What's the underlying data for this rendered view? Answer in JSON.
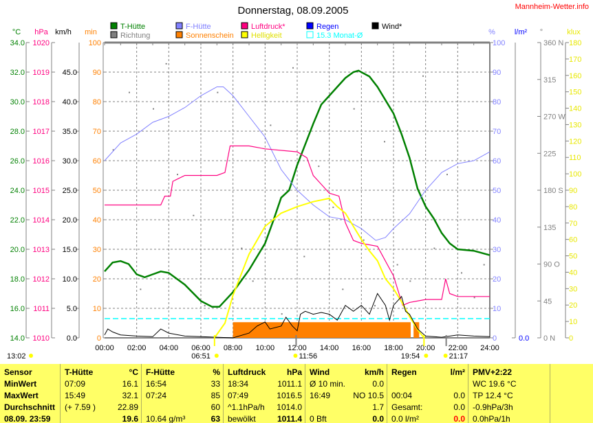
{
  "title": "Donnerstag, 08.09.2005",
  "brand": "Mannheim-Wetter.info",
  "colors": {
    "temp": "#008000",
    "pressure": "#ff0080",
    "humidity": "#8080ff",
    "rain": "#0000ff",
    "wind": "#000000",
    "direction": "#808080",
    "sunshine": "#ff8000",
    "brightness": "#ffff00",
    "monthly": "#00ffff"
  },
  "legend": [
    {
      "label": "T-Hütte",
      "color": "#008000"
    },
    {
      "label": "F-Hütte",
      "color": "#8080ff"
    },
    {
      "label": "Luftdruck*",
      "color": "#ff0080"
    },
    {
      "label": "Regen",
      "color": "#0000ff"
    },
    {
      "label": "Wind*",
      "color": "#000000"
    },
    {
      "label": "Richtung",
      "color": "#808080"
    },
    {
      "label": "Sonnenschein",
      "color": "#ff8000"
    },
    {
      "label": "Helligkeit",
      "color": "#ffff00"
    },
    {
      "label": "15.3 Monat-Ø",
      "color": "#00ffff"
    }
  ],
  "axes": {
    "temp": {
      "unit": "°C",
      "ticks": [
        "14.0",
        "16.0",
        "18.0",
        "20.0",
        "22.0",
        "24.0",
        "26.0",
        "28.0",
        "30.0",
        "32.0",
        "34.0"
      ],
      "range": [
        14,
        34
      ]
    },
    "pressure": {
      "unit": "hPa",
      "ticks": [
        "1010",
        "1011",
        "1012",
        "1013",
        "1014",
        "1015",
        "1016",
        "1017",
        "1018",
        "1019",
        "1020"
      ],
      "range": [
        1010,
        1020
      ]
    },
    "wind": {
      "unit": "km/h",
      "ticks": [
        "0.0",
        "5.0",
        "10.0",
        "15.0",
        "20.0",
        "25.0",
        "30.0",
        "35.0",
        "40.0",
        "45.0"
      ],
      "range": [
        0,
        50
      ]
    },
    "sunshine": {
      "unit": "min",
      "ticks": [
        "0",
        "10",
        "20",
        "30",
        "40",
        "50",
        "60",
        "70",
        "80",
        "90",
        "100"
      ],
      "range": [
        0,
        100
      ]
    },
    "humidity": {
      "unit": "%",
      "ticks": [
        "0",
        "10",
        "20",
        "30",
        "40",
        "50",
        "60",
        "70",
        "80",
        "90",
        "100"
      ],
      "range": [
        0,
        100
      ]
    },
    "rain": {
      "unit": "l/m²",
      "ticks": [
        "0.0"
      ]
    },
    "direction": {
      "unit": "°",
      "ticks": [
        "0   N",
        "45",
        "90  O",
        "135",
        "180 S",
        "225",
        "270 W",
        "315",
        "360 N"
      ],
      "range": [
        0,
        360
      ]
    },
    "brightness": {
      "unit": "klux",
      "ticks": [
        "0",
        "10",
        "20",
        "30",
        "40",
        "50",
        "60",
        "70",
        "80",
        "90",
        "100",
        "110",
        "120",
        "130",
        "140",
        "150",
        "160",
        "170",
        "180"
      ],
      "range": [
        0,
        180
      ]
    },
    "x": {
      "ticks": [
        "00:00",
        "02:00",
        "04:00",
        "06:00",
        "08:00",
        "10:00",
        "12:00",
        "14:00",
        "16:00",
        "18:00",
        "20:00",
        "22:00",
        "24:00"
      ],
      "range": [
        0,
        24
      ]
    }
  },
  "chart_data": {
    "type": "line",
    "title": "Donnerstag, 08.09.2005",
    "x_unit": "hour of day",
    "grid": true,
    "legend_placement": "top",
    "series": [
      {
        "name": "T-Hütte",
        "axis": "temp",
        "points": [
          [
            0,
            18.5
          ],
          [
            0.5,
            19.1
          ],
          [
            1,
            19.2
          ],
          [
            1.5,
            19
          ],
          [
            2,
            18.3
          ],
          [
            2.5,
            18.1
          ],
          [
            3,
            18.3
          ],
          [
            3.5,
            18.5
          ],
          [
            4,
            18.4
          ],
          [
            5,
            17.6
          ],
          [
            6,
            16.5
          ],
          [
            6.7,
            16.1
          ],
          [
            7.15,
            16.1
          ],
          [
            8,
            17.1
          ],
          [
            9,
            18.6
          ],
          [
            10,
            20.4
          ],
          [
            10.5,
            21.9
          ],
          [
            11,
            23.5
          ],
          [
            11.5,
            24
          ],
          [
            12,
            25.7
          ],
          [
            12.5,
            27.1
          ],
          [
            13,
            28.5
          ],
          [
            13.5,
            29.8
          ],
          [
            14,
            30.4
          ],
          [
            14.5,
            31
          ],
          [
            15,
            31.6
          ],
          [
            15.5,
            32
          ],
          [
            15.82,
            32.1
          ],
          [
            16.5,
            31.7
          ],
          [
            17,
            31
          ],
          [
            17.5,
            30.1
          ],
          [
            18,
            29.2
          ],
          [
            18.5,
            27.8
          ],
          [
            19,
            26.2
          ],
          [
            19.5,
            24.1
          ],
          [
            20,
            22.9
          ],
          [
            20.5,
            22.1
          ],
          [
            21,
            21.1
          ],
          [
            21.5,
            20.4
          ],
          [
            22,
            20
          ],
          [
            23,
            19.9
          ],
          [
            24,
            19.6
          ]
        ]
      },
      {
        "name": "F-Hütte",
        "axis": "humidity",
        "points": [
          [
            0,
            60
          ],
          [
            1,
            66
          ],
          [
            2,
            69
          ],
          [
            3,
            73
          ],
          [
            4,
            75
          ],
          [
            5,
            78
          ],
          [
            6,
            82
          ],
          [
            7,
            85
          ],
          [
            7.4,
            85
          ],
          [
            8,
            82
          ],
          [
            9,
            75
          ],
          [
            10,
            68
          ],
          [
            11,
            57
          ],
          [
            12,
            50
          ],
          [
            13,
            45
          ],
          [
            14,
            41
          ],
          [
            15,
            40
          ],
          [
            16,
            37
          ],
          [
            16.9,
            33
          ],
          [
            17.5,
            34
          ],
          [
            18,
            37
          ],
          [
            19,
            42
          ],
          [
            20,
            50
          ],
          [
            21,
            56
          ],
          [
            22,
            59
          ],
          [
            23,
            60
          ],
          [
            24,
            63
          ]
        ]
      },
      {
        "name": "Luftdruck*",
        "axis": "pressure",
        "points": [
          [
            0,
            1014.5
          ],
          [
            3.5,
            1014.5
          ],
          [
            3.75,
            1014.8
          ],
          [
            4.1,
            1014.8
          ],
          [
            4.25,
            1015.3
          ],
          [
            5,
            1015.5
          ],
          [
            7,
            1015.5
          ],
          [
            7.5,
            1015.6
          ],
          [
            7.82,
            1016.5
          ],
          [
            9,
            1016.5
          ],
          [
            10,
            1016.4
          ],
          [
            12,
            1016.3
          ],
          [
            12.6,
            1016.1
          ],
          [
            13,
            1015.5
          ],
          [
            13.5,
            1015.2
          ],
          [
            14,
            1014.9
          ],
          [
            14.6,
            1014.8
          ],
          [
            15,
            1013.9
          ],
          [
            15.5,
            1013.3
          ],
          [
            16,
            1013.2
          ],
          [
            17,
            1013.1
          ],
          [
            17.5,
            1012.6
          ],
          [
            18,
            1012.1
          ],
          [
            18.57,
            1011.1
          ],
          [
            19,
            1011.2
          ],
          [
            20,
            1011.3
          ],
          [
            21,
            1011.3
          ],
          [
            21.25,
            1012
          ],
          [
            21.5,
            1011.5
          ],
          [
            22,
            1011.4
          ],
          [
            24,
            1011.4
          ]
        ]
      },
      {
        "name": "Helligkeit",
        "axis": "brightness",
        "points": [
          [
            6.85,
            0
          ],
          [
            7.5,
            9
          ],
          [
            8,
            26
          ],
          [
            9,
            51
          ],
          [
            10,
            68
          ],
          [
            11,
            76
          ],
          [
            12,
            80
          ],
          [
            13,
            83
          ],
          [
            14,
            85
          ],
          [
            14.5,
            80
          ],
          [
            15,
            76
          ],
          [
            15.5,
            68
          ],
          [
            16,
            60
          ],
          [
            16.5,
            53
          ],
          [
            17,
            47
          ],
          [
            17.5,
            36
          ],
          [
            18,
            30
          ],
          [
            18.5,
            22
          ],
          [
            19,
            13
          ],
          [
            19.5,
            5
          ],
          [
            19.9,
            0
          ]
        ]
      },
      {
        "name": "Wind*",
        "axis": "wind",
        "points": [
          [
            0,
            0.5
          ],
          [
            0.2,
            1.5
          ],
          [
            0.5,
            1
          ],
          [
            1,
            0.5
          ],
          [
            2,
            0.3
          ],
          [
            3,
            0.2
          ],
          [
            3.5,
            1.5
          ],
          [
            4,
            0.8
          ],
          [
            5,
            0.3
          ],
          [
            6,
            0.2
          ],
          [
            7,
            0.1
          ],
          [
            8,
            0
          ],
          [
            9,
            0.8
          ],
          [
            9.5,
            2
          ],
          [
            10,
            2.7
          ],
          [
            10.3,
            1.5
          ],
          [
            11,
            2
          ],
          [
            11.3,
            3.5
          ],
          [
            11.7,
            2
          ],
          [
            12,
            1.2
          ],
          [
            12.2,
            4
          ],
          [
            12.5,
            4.5
          ],
          [
            13,
            4
          ],
          [
            13.5,
            4.3
          ],
          [
            14,
            4
          ],
          [
            14.5,
            3
          ],
          [
            15,
            5.5
          ],
          [
            15.5,
            4.5
          ],
          [
            16,
            5.5
          ],
          [
            16.5,
            4
          ],
          [
            17,
            7.5
          ],
          [
            17.5,
            5.5
          ],
          [
            17.75,
            3
          ],
          [
            18,
            5.5
          ],
          [
            18.5,
            7
          ],
          [
            18.75,
            4.5
          ],
          [
            19,
            4
          ],
          [
            19.5,
            1.5
          ],
          [
            20,
            0.3
          ],
          [
            21,
            0.1
          ],
          [
            22,
            0.5
          ],
          [
            23,
            0.3
          ],
          [
            24,
            0.2
          ]
        ]
      }
    ],
    "sunshine_bars": {
      "axis": "sunshine",
      "segments": [
        [
          8.0,
          19.07,
          5.3
        ],
        [
          19.25,
          19.6,
          5.3
        ]
      ]
    },
    "direction_points": {
      "axis": "direction",
      "points": [
        [
          0.5,
          230
        ],
        [
          1.5,
          300
        ],
        [
          2.2,
          60
        ],
        [
          3,
          280
        ],
        [
          3.8,
          335
        ],
        [
          4.5,
          200
        ],
        [
          5.5,
          150
        ],
        [
          6.2,
          40
        ],
        [
          7,
          300
        ],
        [
          8.5,
          110
        ],
        [
          9.2,
          70
        ],
        [
          10.3,
          260
        ],
        [
          11,
          30
        ],
        [
          11.7,
          330
        ],
        [
          12.4,
          100
        ],
        [
          13.3,
          210
        ],
        [
          14.2,
          160
        ],
        [
          14.8,
          60
        ],
        [
          15.5,
          280
        ],
        [
          16.1,
          120
        ],
        [
          16.8,
          40
        ],
        [
          17.4,
          240
        ],
        [
          18.2,
          90
        ],
        [
          19,
          70
        ],
        [
          19.8,
          320
        ],
        [
          20.5,
          110
        ],
        [
          21.3,
          200
        ],
        [
          22.2,
          80
        ],
        [
          23,
          50
        ],
        [
          23.6,
          90
        ]
      ]
    },
    "monthly_avg": {
      "label": "15.3 Monat-Ø"
    }
  },
  "sun_events": [
    {
      "time": "13:02",
      "kind": "moon"
    },
    {
      "time": "06:51",
      "kind": "sunrise"
    },
    {
      "time": "11:56",
      "kind": "noon"
    },
    {
      "time": "19:54",
      "kind": "sunset"
    },
    {
      "time": "21:17",
      "kind": "moonset"
    }
  ],
  "table": {
    "sensor": {
      "header": "Sensor",
      "rows": [
        "MinWert",
        "MaxWert",
        "Durchschnitt",
        "08.09. 23:59"
      ]
    },
    "columns": [
      {
        "header": "T-Hütte",
        "unit": "°C",
        "rows": [
          [
            "07:09",
            "16.1"
          ],
          [
            "15:49",
            "32.1"
          ],
          [
            "(+ 7.59 )",
            "22.89"
          ],
          [
            "",
            "19.6"
          ]
        ]
      },
      {
        "header": "F-Hütte",
        "unit": "%",
        "rows": [
          [
            "16:54",
            "33"
          ],
          [
            "07:24",
            "85"
          ],
          [
            "",
            "60"
          ],
          [
            "10.64 g/m³",
            "63"
          ]
        ]
      },
      {
        "header": "Luftdruck",
        "unit": "hPa",
        "rows": [
          [
            "18:34",
            "1011.1"
          ],
          [
            "07:49",
            "1016.5"
          ],
          [
            "^1.1hPa/h",
            "1014.0"
          ],
          [
            "bewölkt",
            "1011.4"
          ]
        ]
      },
      {
        "header": "Wind",
        "unit": "km/h",
        "rows": [
          [
            "Ø 10 min.",
            "0.0"
          ],
          [
            "16:49",
            "NO 10.5"
          ],
          [
            "",
            "1.7"
          ],
          [
            "0 Bft",
            "0.0"
          ]
        ]
      },
      {
        "header": "Regen",
        "unit": "l/m²",
        "rows": [
          [
            "",
            ""
          ],
          [
            "00:04",
            "0.0"
          ],
          [
            "Gesamt:",
            "0.0"
          ],
          [
            "0.0 l/m²",
            "0.0"
          ]
        ]
      }
    ],
    "pmv": {
      "header": "PMV+2:22",
      "rows": [
        "WC 19.6 °C",
        "TP 12.4 °C",
        "-0.9hPa/3h",
        "0.0hPa/1h"
      ]
    }
  }
}
